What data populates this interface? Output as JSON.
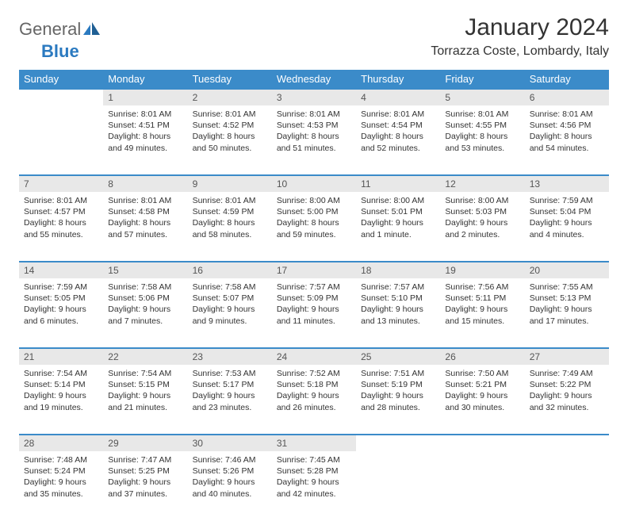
{
  "logo": {
    "text1": "General",
    "text2": "Blue"
  },
  "title": "January 2024",
  "location": "Torrazza Coste, Lombardy, Italy",
  "colors": {
    "header_bg": "#3b8bc9",
    "header_text": "#ffffff",
    "daynum_bg": "#e8e8e8",
    "row_border": "#3b8bc9",
    "body_text": "#333333",
    "logo_gray": "#666666",
    "logo_blue": "#2b7ac0",
    "page_bg": "#ffffff"
  },
  "day_headers": [
    "Sunday",
    "Monday",
    "Tuesday",
    "Wednesday",
    "Thursday",
    "Friday",
    "Saturday"
  ],
  "weeks": [
    [
      {
        "n": "",
        "lines": []
      },
      {
        "n": "1",
        "lines": [
          "Sunrise: 8:01 AM",
          "Sunset: 4:51 PM",
          "Daylight: 8 hours and 49 minutes."
        ]
      },
      {
        "n": "2",
        "lines": [
          "Sunrise: 8:01 AM",
          "Sunset: 4:52 PM",
          "Daylight: 8 hours and 50 minutes."
        ]
      },
      {
        "n": "3",
        "lines": [
          "Sunrise: 8:01 AM",
          "Sunset: 4:53 PM",
          "Daylight: 8 hours and 51 minutes."
        ]
      },
      {
        "n": "4",
        "lines": [
          "Sunrise: 8:01 AM",
          "Sunset: 4:54 PM",
          "Daylight: 8 hours and 52 minutes."
        ]
      },
      {
        "n": "5",
        "lines": [
          "Sunrise: 8:01 AM",
          "Sunset: 4:55 PM",
          "Daylight: 8 hours and 53 minutes."
        ]
      },
      {
        "n": "6",
        "lines": [
          "Sunrise: 8:01 AM",
          "Sunset: 4:56 PM",
          "Daylight: 8 hours and 54 minutes."
        ]
      }
    ],
    [
      {
        "n": "7",
        "lines": [
          "Sunrise: 8:01 AM",
          "Sunset: 4:57 PM",
          "Daylight: 8 hours and 55 minutes."
        ]
      },
      {
        "n": "8",
        "lines": [
          "Sunrise: 8:01 AM",
          "Sunset: 4:58 PM",
          "Daylight: 8 hours and 57 minutes."
        ]
      },
      {
        "n": "9",
        "lines": [
          "Sunrise: 8:01 AM",
          "Sunset: 4:59 PM",
          "Daylight: 8 hours and 58 minutes."
        ]
      },
      {
        "n": "10",
        "lines": [
          "Sunrise: 8:00 AM",
          "Sunset: 5:00 PM",
          "Daylight: 8 hours and 59 minutes."
        ]
      },
      {
        "n": "11",
        "lines": [
          "Sunrise: 8:00 AM",
          "Sunset: 5:01 PM",
          "Daylight: 9 hours and 1 minute."
        ]
      },
      {
        "n": "12",
        "lines": [
          "Sunrise: 8:00 AM",
          "Sunset: 5:03 PM",
          "Daylight: 9 hours and 2 minutes."
        ]
      },
      {
        "n": "13",
        "lines": [
          "Sunrise: 7:59 AM",
          "Sunset: 5:04 PM",
          "Daylight: 9 hours and 4 minutes."
        ]
      }
    ],
    [
      {
        "n": "14",
        "lines": [
          "Sunrise: 7:59 AM",
          "Sunset: 5:05 PM",
          "Daylight: 9 hours and 6 minutes."
        ]
      },
      {
        "n": "15",
        "lines": [
          "Sunrise: 7:58 AM",
          "Sunset: 5:06 PM",
          "Daylight: 9 hours and 7 minutes."
        ]
      },
      {
        "n": "16",
        "lines": [
          "Sunrise: 7:58 AM",
          "Sunset: 5:07 PM",
          "Daylight: 9 hours and 9 minutes."
        ]
      },
      {
        "n": "17",
        "lines": [
          "Sunrise: 7:57 AM",
          "Sunset: 5:09 PM",
          "Daylight: 9 hours and 11 minutes."
        ]
      },
      {
        "n": "18",
        "lines": [
          "Sunrise: 7:57 AM",
          "Sunset: 5:10 PM",
          "Daylight: 9 hours and 13 minutes."
        ]
      },
      {
        "n": "19",
        "lines": [
          "Sunrise: 7:56 AM",
          "Sunset: 5:11 PM",
          "Daylight: 9 hours and 15 minutes."
        ]
      },
      {
        "n": "20",
        "lines": [
          "Sunrise: 7:55 AM",
          "Sunset: 5:13 PM",
          "Daylight: 9 hours and 17 minutes."
        ]
      }
    ],
    [
      {
        "n": "21",
        "lines": [
          "Sunrise: 7:54 AM",
          "Sunset: 5:14 PM",
          "Daylight: 9 hours and 19 minutes."
        ]
      },
      {
        "n": "22",
        "lines": [
          "Sunrise: 7:54 AM",
          "Sunset: 5:15 PM",
          "Daylight: 9 hours and 21 minutes."
        ]
      },
      {
        "n": "23",
        "lines": [
          "Sunrise: 7:53 AM",
          "Sunset: 5:17 PM",
          "Daylight: 9 hours and 23 minutes."
        ]
      },
      {
        "n": "24",
        "lines": [
          "Sunrise: 7:52 AM",
          "Sunset: 5:18 PM",
          "Daylight: 9 hours and 26 minutes."
        ]
      },
      {
        "n": "25",
        "lines": [
          "Sunrise: 7:51 AM",
          "Sunset: 5:19 PM",
          "Daylight: 9 hours and 28 minutes."
        ]
      },
      {
        "n": "26",
        "lines": [
          "Sunrise: 7:50 AM",
          "Sunset: 5:21 PM",
          "Daylight: 9 hours and 30 minutes."
        ]
      },
      {
        "n": "27",
        "lines": [
          "Sunrise: 7:49 AM",
          "Sunset: 5:22 PM",
          "Daylight: 9 hours and 32 minutes."
        ]
      }
    ],
    [
      {
        "n": "28",
        "lines": [
          "Sunrise: 7:48 AM",
          "Sunset: 5:24 PM",
          "Daylight: 9 hours and 35 minutes."
        ]
      },
      {
        "n": "29",
        "lines": [
          "Sunrise: 7:47 AM",
          "Sunset: 5:25 PM",
          "Daylight: 9 hours and 37 minutes."
        ]
      },
      {
        "n": "30",
        "lines": [
          "Sunrise: 7:46 AM",
          "Sunset: 5:26 PM",
          "Daylight: 9 hours and 40 minutes."
        ]
      },
      {
        "n": "31",
        "lines": [
          "Sunrise: 7:45 AM",
          "Sunset: 5:28 PM",
          "Daylight: 9 hours and 42 minutes."
        ]
      },
      {
        "n": "",
        "lines": []
      },
      {
        "n": "",
        "lines": []
      },
      {
        "n": "",
        "lines": []
      }
    ]
  ]
}
